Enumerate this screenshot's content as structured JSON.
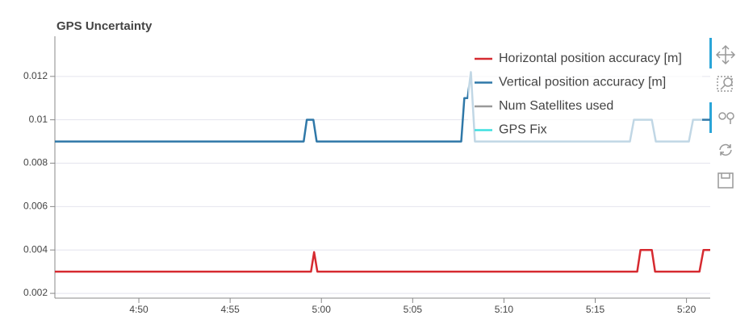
{
  "chart_data": {
    "type": "line",
    "title": "GPS Uncertainty",
    "xlim": [
      285.4,
      321.3
    ],
    "ylim": [
      0.00178,
      0.01385
    ],
    "xticks": [
      {
        "value": 290,
        "label": "4:50"
      },
      {
        "value": 295,
        "label": "4:55"
      },
      {
        "value": 300,
        "label": "5:00"
      },
      {
        "value": 305,
        "label": "5:05"
      },
      {
        "value": 310,
        "label": "5:10"
      },
      {
        "value": 315,
        "label": "5:15"
      },
      {
        "value": 320,
        "label": "5:20"
      }
    ],
    "yticks": [
      0.002,
      0.004,
      0.006,
      0.008,
      0.01,
      0.012
    ],
    "grid": true,
    "legend": "top-right",
    "series": [
      {
        "name": "Horizontal position accuracy [m]",
        "color": "#d62a30",
        "x": [
          285.4,
          299.43,
          299.6,
          299.78,
          317.3,
          317.48,
          318.1,
          318.28,
          320.71,
          320.93,
          321.3
        ],
        "values": [
          0.003,
          0.003,
          0.0039,
          0.003,
          0.003,
          0.004,
          0.004,
          0.003,
          0.003,
          0.004,
          0.004
        ]
      },
      {
        "name": "Vertical position accuracy [m]",
        "color": "#2f78a8",
        "x": [
          285.4,
          299.03,
          299.2,
          299.56,
          299.74,
          307.66,
          307.83,
          308.01,
          308.19,
          308.41,
          316.9,
          317.12,
          318.1,
          318.32,
          320.13,
          320.36,
          321.3
        ],
        "values": [
          0.009,
          0.009,
          0.01,
          0.01,
          0.009,
          0.009,
          0.011,
          0.011,
          0.0122,
          0.009,
          0.009,
          0.01,
          0.01,
          0.009,
          0.009,
          0.01,
          0.01
        ]
      },
      {
        "name": "Num Satellites used",
        "color": "#999999",
        "x": [],
        "values": []
      },
      {
        "name": "GPS Fix",
        "color": "#3ee0e0",
        "x": [],
        "values": []
      }
    ]
  }
}
